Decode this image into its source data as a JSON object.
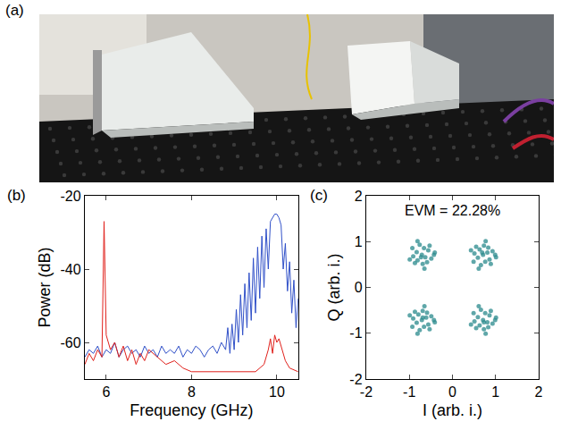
{
  "photo": {
    "label": "(a)"
  },
  "chart_data": [
    {
      "label": "(b)",
      "type": "line",
      "xlabel": "Frequency (GHz)",
      "ylabel": "Power (dB)",
      "xlim": [
        5.5,
        10.5
      ],
      "xticks": [
        6,
        8,
        10
      ],
      "ylim": [
        -70,
        -20
      ],
      "yticks": [
        -20,
        -40,
        -60
      ],
      "grid": false,
      "series": [
        {
          "color": "#3050c8",
          "x": [
            5.5,
            5.6,
            5.7,
            5.8,
            5.9,
            6.0,
            6.1,
            6.2,
            6.3,
            6.4,
            6.5,
            6.6,
            6.7,
            6.8,
            6.9,
            7.0,
            7.1,
            7.2,
            7.3,
            7.4,
            7.5,
            7.6,
            7.7,
            7.8,
            7.9,
            8.0,
            8.1,
            8.2,
            8.3,
            8.4,
            8.5,
            8.6,
            8.7,
            8.8,
            8.85,
            8.9,
            8.95,
            9.0,
            9.05,
            9.1,
            9.15,
            9.2,
            9.25,
            9.3,
            9.35,
            9.4,
            9.45,
            9.5,
            9.55,
            9.6,
            9.65,
            9.7,
            9.75,
            9.8,
            9.85,
            9.9,
            9.95,
            10.0,
            10.05,
            10.1,
            10.15,
            10.2,
            10.25,
            10.3,
            10.35,
            10.4,
            10.45,
            10.5
          ],
          "values": [
            -64,
            -62,
            -63,
            -61,
            -64,
            -62,
            -63,
            -60,
            -64,
            -62,
            -61,
            -63,
            -62,
            -64,
            -61,
            -63,
            -62,
            -64,
            -61,
            -63,
            -62,
            -63,
            -61,
            -64,
            -62,
            -63,
            -61,
            -62,
            -64,
            -62,
            -61,
            -63,
            -60,
            -62,
            -56,
            -63,
            -55,
            -62,
            -51,
            -60,
            -47,
            -58,
            -44,
            -56,
            -41,
            -54,
            -37,
            -52,
            -34,
            -48,
            -31,
            -45,
            -29,
            -40,
            -27,
            -26,
            -25,
            -25,
            -26,
            -28,
            -40,
            -33,
            -46,
            -38,
            -52,
            -43,
            -56,
            -48
          ]
        },
        {
          "color": "#e0201b",
          "x": [
            5.5,
            5.6,
            5.7,
            5.8,
            5.9,
            5.95,
            6.0,
            6.1,
            6.2,
            6.3,
            6.4,
            6.5,
            6.6,
            6.7,
            6.8,
            6.9,
            7.0,
            7.2,
            7.4,
            7.6,
            7.8,
            8.0,
            8.5,
            9.0,
            9.5,
            9.7,
            9.8,
            9.85,
            9.9,
            9.95,
            10.0,
            10.05,
            10.1,
            10.2,
            10.3,
            10.5
          ],
          "values": [
            -66,
            -63,
            -65,
            -62,
            -64,
            -27,
            -58,
            -62,
            -60,
            -64,
            -61,
            -65,
            -62,
            -66,
            -63,
            -65,
            -62,
            -64,
            -66,
            -65,
            -67,
            -68,
            -68,
            -68,
            -68,
            -66,
            -62,
            -59,
            -63,
            -58,
            -60,
            -59,
            -61,
            -65,
            -67,
            -68
          ]
        }
      ]
    },
    {
      "label": "(c)",
      "type": "scatter",
      "annotation": "EVM = 22.28%",
      "xlabel": "I (arb. i.)",
      "ylabel": "Q (arb. i.)",
      "xlim": [
        -2,
        2
      ],
      "xticks": [
        -2,
        -1,
        0,
        1,
        2
      ],
      "ylim": [
        -2,
        2
      ],
      "yticks": [
        -2,
        -1,
        0,
        1,
        2
      ],
      "grid": false,
      "color": "#2a8a8c",
      "x": [
        0.71,
        0.81,
        0.63,
        0.86,
        0.59,
        0.76,
        0.51,
        0.93,
        0.73,
        0.66,
        0.83,
        0.55,
        0.89,
        0.49,
        0.99,
        0.43,
        0.77,
        0.61,
        1.01,
        0.69,
        -0.71,
        -0.63,
        -0.81,
        -0.56,
        -0.83,
        -0.66,
        -0.91,
        -0.49,
        -0.69,
        -0.76,
        -0.59,
        -0.87,
        -0.53,
        -0.93,
        -0.43,
        -0.99,
        -0.65,
        -0.81,
        -0.41,
        -0.73,
        -0.71,
        -0.61,
        -0.79,
        -0.56,
        -0.83,
        -0.66,
        -0.91,
        -0.49,
        -0.69,
        -0.76,
        -0.59,
        -0.87,
        -0.53,
        -0.93,
        -0.43,
        -0.99,
        -0.65,
        -0.81,
        -0.41,
        -0.69,
        0.71,
        0.81,
        0.63,
        0.86,
        0.59,
        0.76,
        0.51,
        0.93,
        0.73,
        0.66,
        0.83,
        0.55,
        0.89,
        0.49,
        0.99,
        0.43,
        0.77,
        0.61,
        1.01,
        0.73
      ],
      "values": [
        0.71,
        0.76,
        0.83,
        0.61,
        0.65,
        0.56,
        0.74,
        0.79,
        0.91,
        0.49,
        0.87,
        0.89,
        0.51,
        0.56,
        0.71,
        0.81,
        1.01,
        0.41,
        0.66,
        0.76,
        0.71,
        0.66,
        0.59,
        0.81,
        0.77,
        0.86,
        0.68,
        0.63,
        0.51,
        0.93,
        0.55,
        0.53,
        0.91,
        0.86,
        0.71,
        0.61,
        0.41,
        1.01,
        0.76,
        0.66,
        -0.71,
        -0.66,
        -0.59,
        -0.81,
        -0.77,
        -0.86,
        -0.68,
        -0.63,
        -0.51,
        -0.93,
        -0.55,
        -0.53,
        -0.91,
        -0.86,
        -0.71,
        -0.61,
        -0.41,
        -1.01,
        -0.76,
        -0.66,
        -0.71,
        -0.76,
        -0.83,
        -0.61,
        -0.65,
        -0.56,
        -0.74,
        -0.79,
        -0.91,
        -0.49,
        -0.87,
        -0.89,
        -0.51,
        -0.56,
        -0.71,
        -0.81,
        -1.01,
        -0.41,
        -0.66,
        -0.76
      ]
    }
  ]
}
